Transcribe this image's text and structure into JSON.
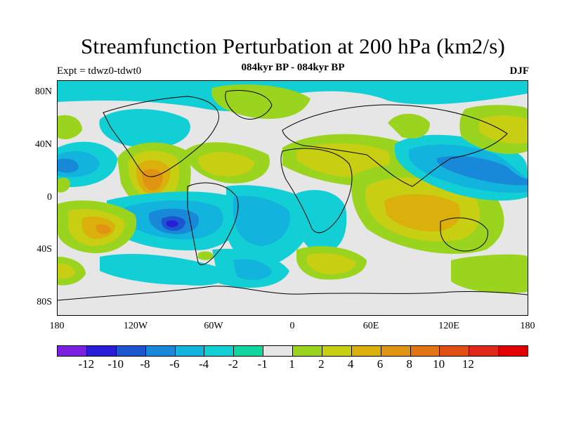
{
  "title": "Streamfunction Perturbation at 200 hPa (km2/s)",
  "subtitle": "084kyr BP - 084kyr BP",
  "expt": "Expt = tdwz0-tdwt0",
  "season": "DJF",
  "lat_ticks": [
    "80N",
    "40N",
    "0",
    "40S",
    "80S"
  ],
  "lon_ticks": [
    "180",
    "120W",
    "60W",
    "0",
    "60E",
    "120E",
    "180"
  ],
  "colorbar": {
    "colors": [
      "#7b1fe0",
      "#2a1dd8",
      "#1b55d0",
      "#1889d8",
      "#12b3dc",
      "#12cfd6",
      "#11d6a0",
      "#e6e6e6",
      "#9ad41e",
      "#c8ce12",
      "#dcb00c",
      "#e09412",
      "#e27412",
      "#e04e12",
      "#e0281a",
      "#e00000"
    ],
    "labels": [
      "-12",
      "-10",
      "-8",
      "-6",
      "-4",
      "-2",
      "-1",
      "1",
      "2",
      "4",
      "6",
      "8",
      "10",
      "12"
    ]
  },
  "field_colors": {
    "neg12": "#7b1fe0",
    "neg10": "#2a1dd8",
    "neg8": "#1b55d0",
    "neg6": "#1889d8",
    "neg4": "#12b3dc",
    "neg2": "#12cfd6",
    "neg1": "#11d6a0",
    "zero": "#e6e6e6",
    "pos1": "#9ad41e",
    "pos2": "#c8ce12",
    "pos4": "#dcb00c",
    "pos6": "#e09412",
    "pos8": "#e27412"
  }
}
